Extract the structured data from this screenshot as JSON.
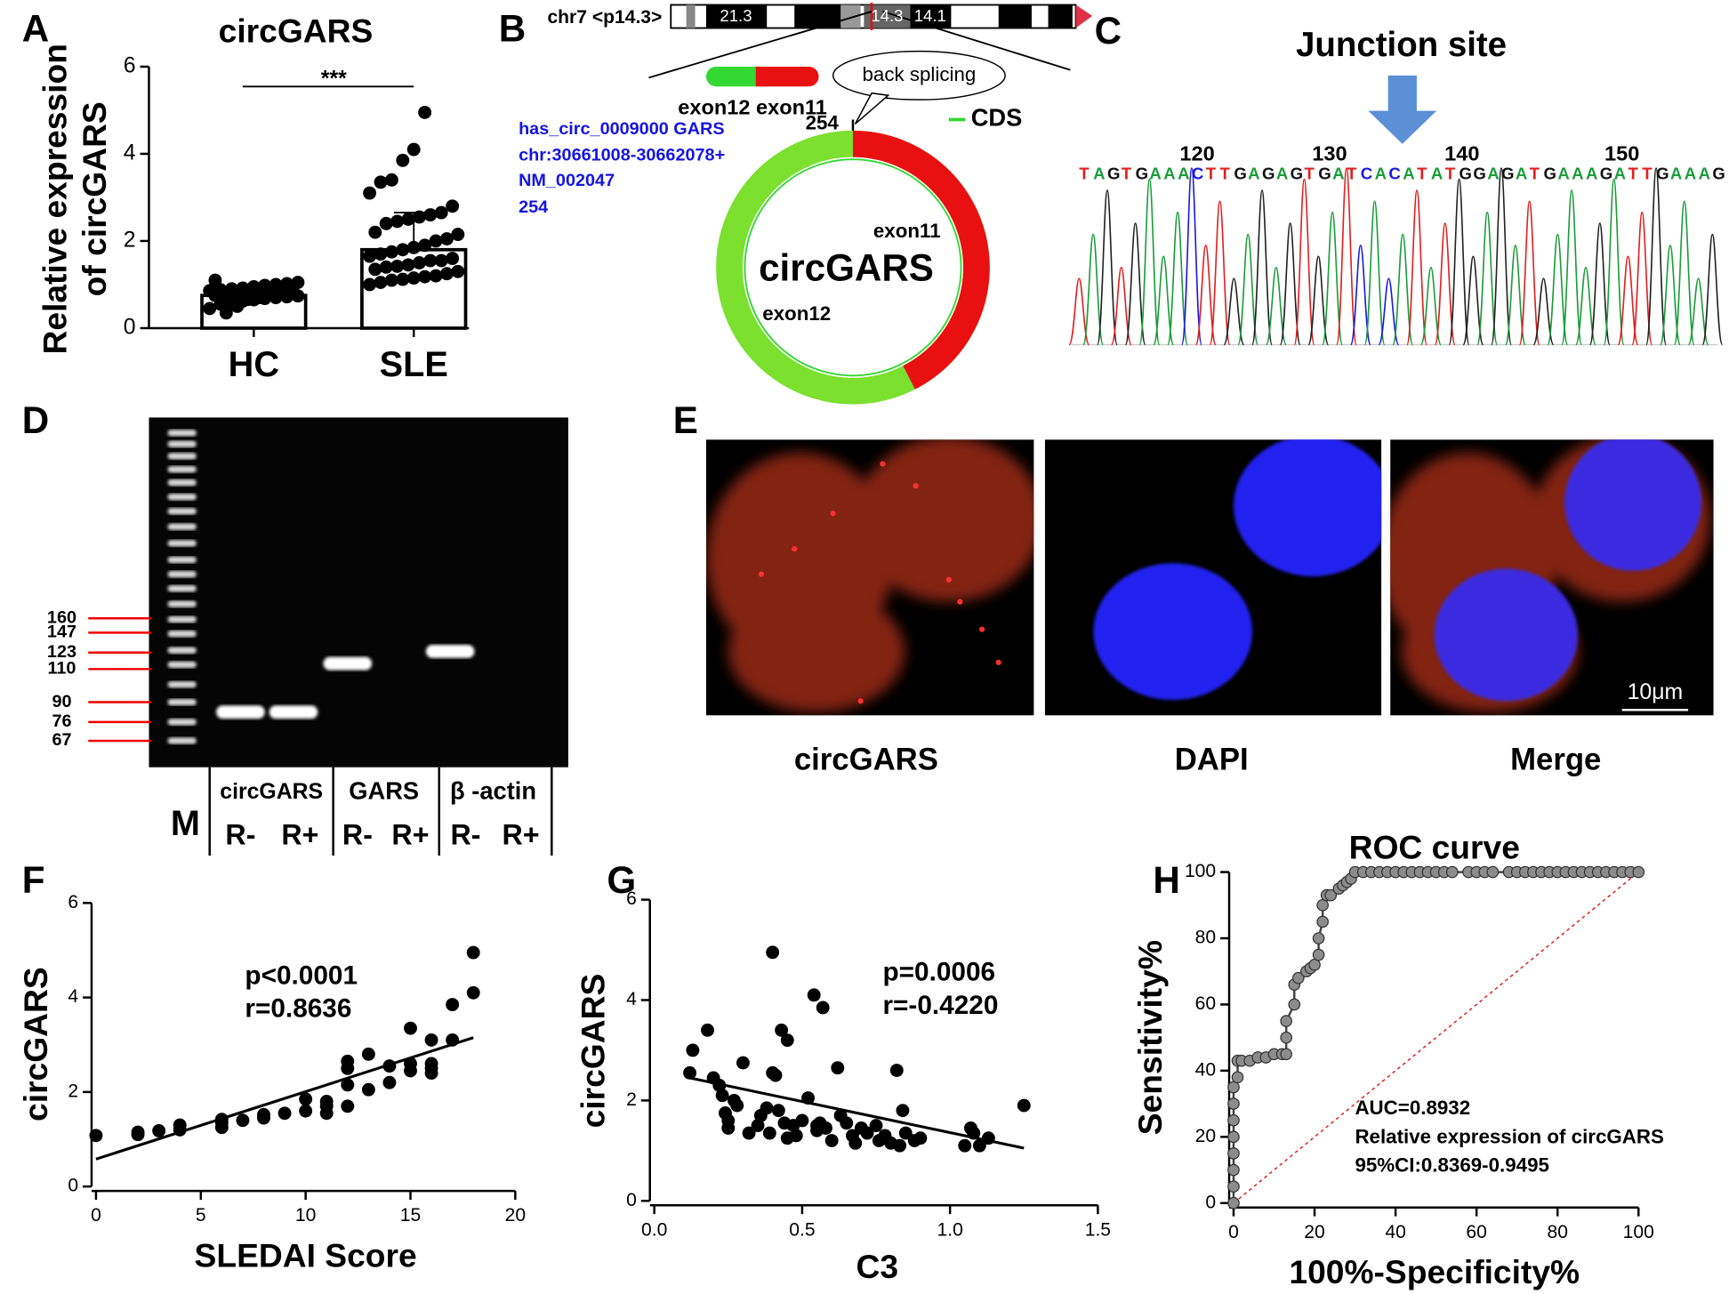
{
  "panel_labels": [
    "A",
    "B",
    "C",
    "D",
    "E",
    "F",
    "G",
    "H"
  ],
  "chart_data": [
    {
      "type": "bar",
      "title": "circGARS",
      "ylabel": [
        "Relative expression",
        "of circGARS"
      ],
      "categories": [
        "HC",
        "SLE"
      ],
      "values": [
        0.75,
        1.8
      ],
      "errors": [
        0.2,
        0.85
      ],
      "color": "#ffffff",
      "point_color": "#000000",
      "points": [
        [
          0.45,
          0.55,
          0.6,
          0.62,
          0.65,
          0.68,
          0.7,
          0.72,
          0.74,
          0.75,
          0.76,
          0.78,
          0.8,
          0.8,
          0.82,
          0.84,
          0.85,
          0.86,
          0.88,
          0.9,
          0.92,
          0.95,
          0.98,
          1.0,
          1.02,
          1.05,
          1.1,
          0.35,
          0.5,
          0.66,
          0.7,
          0.78
        ],
        [
          1.0,
          1.05,
          1.1,
          1.12,
          1.15,
          1.18,
          1.2,
          1.25,
          1.3,
          1.35,
          1.4,
          1.42,
          1.45,
          1.5,
          1.55,
          1.55,
          1.6,
          1.65,
          1.7,
          1.75,
          1.8,
          1.85,
          1.9,
          2.0,
          2.05,
          2.15,
          2.2,
          2.4,
          2.45,
          2.5,
          2.55,
          2.6,
          2.65,
          2.8,
          3.1,
          3.35,
          3.4,
          3.85,
          4.1,
          4.95
        ]
      ],
      "significance": "***",
      "ylim": [
        0,
        6
      ],
      "yticks": [
        0,
        2,
        4,
        6
      ]
    },
    {
      "type": "scatter",
      "xlabel": "SLEDAI Score",
      "ylabel": "circGARS",
      "annotations": [
        "p<0.0001",
        "r=0.8636"
      ],
      "x": [
        0,
        2,
        2,
        3,
        4,
        4,
        6,
        6,
        6,
        7,
        8,
        8,
        9,
        10,
        10,
        11,
        11,
        11,
        12,
        12,
        12,
        12,
        13,
        13,
        14,
        14,
        15,
        15,
        15,
        16,
        16,
        16,
        16,
        17,
        17,
        18,
        18
      ],
      "values": [
        1.08,
        1.1,
        1.15,
        1.18,
        1.2,
        1.3,
        1.25,
        1.35,
        1.42,
        1.4,
        1.45,
        1.52,
        1.55,
        1.6,
        1.85,
        1.55,
        1.7,
        1.8,
        1.7,
        2.15,
        2.5,
        2.65,
        2.05,
        2.8,
        2.2,
        2.55,
        2.45,
        2.6,
        3.35,
        2.4,
        2.5,
        2.6,
        3.1,
        3.1,
        3.85,
        4.1,
        4.95
      ],
      "color": "#000000",
      "fit_line": {
        "x": [
          0,
          18
        ],
        "y": [
          0.58,
          3.15
        ]
      },
      "xlim": [
        0,
        20
      ],
      "xticks": [
        0,
        5,
        10,
        15,
        20
      ],
      "ylim": [
        0,
        6
      ],
      "yticks": [
        0,
        2,
        4,
        6
      ]
    },
    {
      "type": "scatter",
      "xlabel": "C3",
      "ylabel": "circGARS",
      "annotations": [
        "p=0.0006",
        "r=-0.4220"
      ],
      "x": [
        0.12,
        0.13,
        0.18,
        0.2,
        0.22,
        0.23,
        0.24,
        0.25,
        0.25,
        0.27,
        0.28,
        0.3,
        0.32,
        0.35,
        0.36,
        0.38,
        0.39,
        0.4,
        0.4,
        0.41,
        0.42,
        0.43,
        0.44,
        0.45,
        0.45,
        0.47,
        0.48,
        0.5,
        0.52,
        0.54,
        0.55,
        0.55,
        0.56,
        0.57,
        0.58,
        0.6,
        0.62,
        0.63,
        0.65,
        0.67,
        0.68,
        0.7,
        0.72,
        0.75,
        0.76,
        0.78,
        0.8,
        0.82,
        0.83,
        0.84,
        0.85,
        0.88,
        0.9,
        1.05,
        1.07,
        1.08,
        1.1,
        1.13,
        1.25
      ],
      "values": [
        2.55,
        3.0,
        3.4,
        2.45,
        2.3,
        2.1,
        1.75,
        1.6,
        1.45,
        2.0,
        1.9,
        2.75,
        1.35,
        1.5,
        1.7,
        1.85,
        1.35,
        4.95,
        2.55,
        2.5,
        1.8,
        3.4,
        1.55,
        3.2,
        1.25,
        1.5,
        1.3,
        1.6,
        2.05,
        4.1,
        1.5,
        1.4,
        1.55,
        3.85,
        1.45,
        1.2,
        2.65,
        1.7,
        1.55,
        1.3,
        1.15,
        1.45,
        1.35,
        1.5,
        1.2,
        1.3,
        1.15,
        2.6,
        1.1,
        1.8,
        1.35,
        1.2,
        1.25,
        1.1,
        1.45,
        1.35,
        1.1,
        1.25,
        1.9
      ],
      "color": "#000000",
      "fit_line": {
        "x": [
          0.12,
          1.25
        ],
        "y": [
          2.45,
          1.05
        ]
      },
      "xlim": [
        0,
        1.5
      ],
      "xticks": [
        {
          "value": 0,
          "label": "0.0"
        },
        0.5,
        {
          "value": 1,
          "label": "1.0"
        },
        1.5
      ],
      "ylim": [
        0,
        6
      ],
      "yticks": [
        0,
        2,
        4,
        6
      ]
    },
    {
      "type": "line",
      "title": "ROC curve",
      "xlabel": "100%-Specificity%",
      "ylabel": "Sensitivity%",
      "annotations": [
        "AUC=0.8932",
        "Relative expression of circGARS",
        "95%CI:0.8369-0.9495"
      ],
      "x": [
        0,
        0,
        0,
        0,
        0,
        0,
        0,
        0,
        1,
        1,
        2,
        4,
        6,
        8,
        10,
        12,
        13,
        13,
        13,
        15,
        15,
        16,
        18,
        19,
        20,
        21,
        21,
        22,
        22,
        23,
        24,
        26,
        27,
        28,
        29,
        30,
        32,
        34,
        36,
        38,
        40,
        42,
        44,
        46,
        48,
        50,
        52,
        54,
        58,
        60,
        62,
        64,
        68,
        70,
        72,
        74,
        76,
        78,
        80,
        82,
        84,
        86,
        88,
        90,
        92,
        94,
        96,
        98,
        100
      ],
      "values": [
        0,
        5,
        10,
        15,
        20,
        25,
        30,
        35,
        38,
        43,
        43,
        43,
        44,
        44,
        45,
        45,
        45,
        50,
        55,
        60,
        66,
        68,
        70,
        71,
        72,
        75,
        80,
        85,
        90,
        93,
        93,
        95,
        96,
        97,
        98,
        100,
        100,
        100,
        100,
        100,
        100,
        100,
        100,
        100,
        100,
        100,
        100,
        100,
        100,
        100,
        100,
        100,
        100,
        100,
        100,
        100,
        100,
        100,
        100,
        100,
        100,
        100,
        100,
        100,
        100,
        100,
        100,
        100,
        100
      ],
      "color": "#8c8c8c",
      "xlim": [
        0,
        100
      ],
      "xticks": [
        0,
        20,
        40,
        60,
        80,
        100
      ],
      "ylim": [
        0,
        100
      ],
      "yticks": [
        0,
        20,
        40,
        60,
        80,
        100
      ]
    }
  ],
  "panel_b": {
    "chromosome": "chr7 <p14.3>",
    "bands": [
      "21.3",
      "14.3",
      "14.1"
    ],
    "exons": "exon12 exon11",
    "back_splicing": "back splicing",
    "position": 254,
    "info": [
      "has_circ_0009000 GARS",
      "chr:30661008-30662078+",
      "NM_002047",
      "254"
    ],
    "legend": "CDS",
    "circle_label": "circGARS",
    "arc_labels": [
      "exon11",
      "exon12"
    ]
  },
  "panel_c": {
    "title": "Junction site",
    "positions": [
      120,
      130,
      140,
      150
    ],
    "sequence": "TAGTGAAACTTGAGAGTGATCACATATGGAGATGAAAGATTGAAAG"
  },
  "panel_d": {
    "ladder": [
      160,
      147,
      123,
      110,
      90,
      76,
      67
    ],
    "marker": "M",
    "groups": [
      "circGARS",
      "GARS",
      "β -actin"
    ],
    "lanes": [
      "R-",
      "R+",
      "R-",
      "R+",
      "R-",
      "R+"
    ]
  },
  "panel_e": {
    "captions": [
      "circGARS",
      "DAPI",
      "Merge"
    ],
    "scale_bar": "10μm"
  }
}
